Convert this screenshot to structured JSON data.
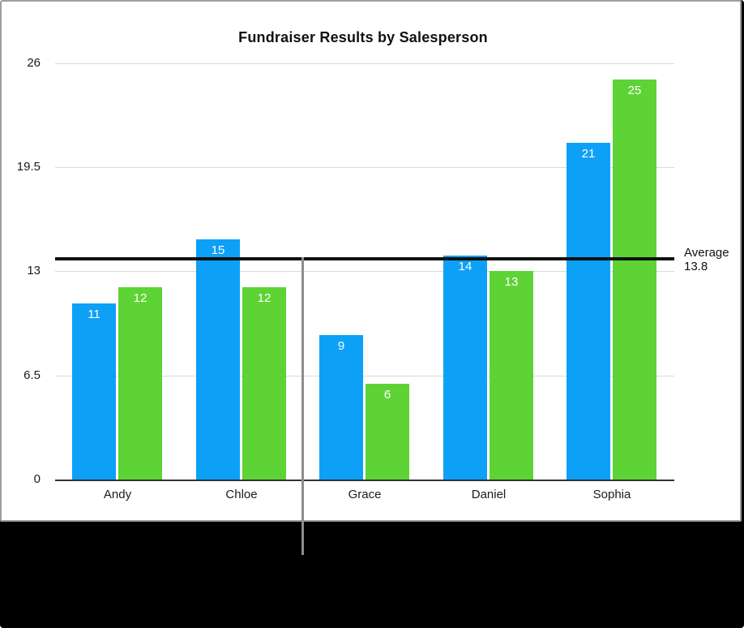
{
  "chart_data": {
    "type": "bar",
    "title": "Fundraiser Results by Salesperson",
    "categories": [
      "Andy",
      "Chloe",
      "Grace",
      "Daniel",
      "Sophia"
    ],
    "series": [
      {
        "name": "blue-series",
        "color": "#0DA0F7",
        "values": [
          11,
          15,
          9,
          14,
          21
        ]
      },
      {
        "name": "green-series",
        "color": "#5DD335",
        "values": [
          12,
          12,
          6,
          13,
          25
        ]
      }
    ],
    "y_axis": {
      "tick_labels": [
        "0",
        "6.5",
        "13",
        "19.5",
        "26"
      ],
      "tick_values": [
        0,
        6.5,
        13,
        19.5,
        26
      ],
      "range": [
        0,
        26
      ],
      "grid": true
    },
    "value_labels_shown": true,
    "reference_line": {
      "label": "Average",
      "value_text": "13.8",
      "value": 13.8
    },
    "legend": "none"
  },
  "colors": {
    "bar_blue": "#0DA0F7",
    "bar_green": "#5DD335",
    "grid_line": "#d9d9d9",
    "axis_line": "#333333",
    "average_line": "#111111",
    "guide_line": "#8d8d8d",
    "card_border": "#9e9e9e",
    "card_background": "#ffffff",
    "backdrop": "#000000",
    "text": "#1b1b1b",
    "bar_label_text": "#ffffff"
  }
}
